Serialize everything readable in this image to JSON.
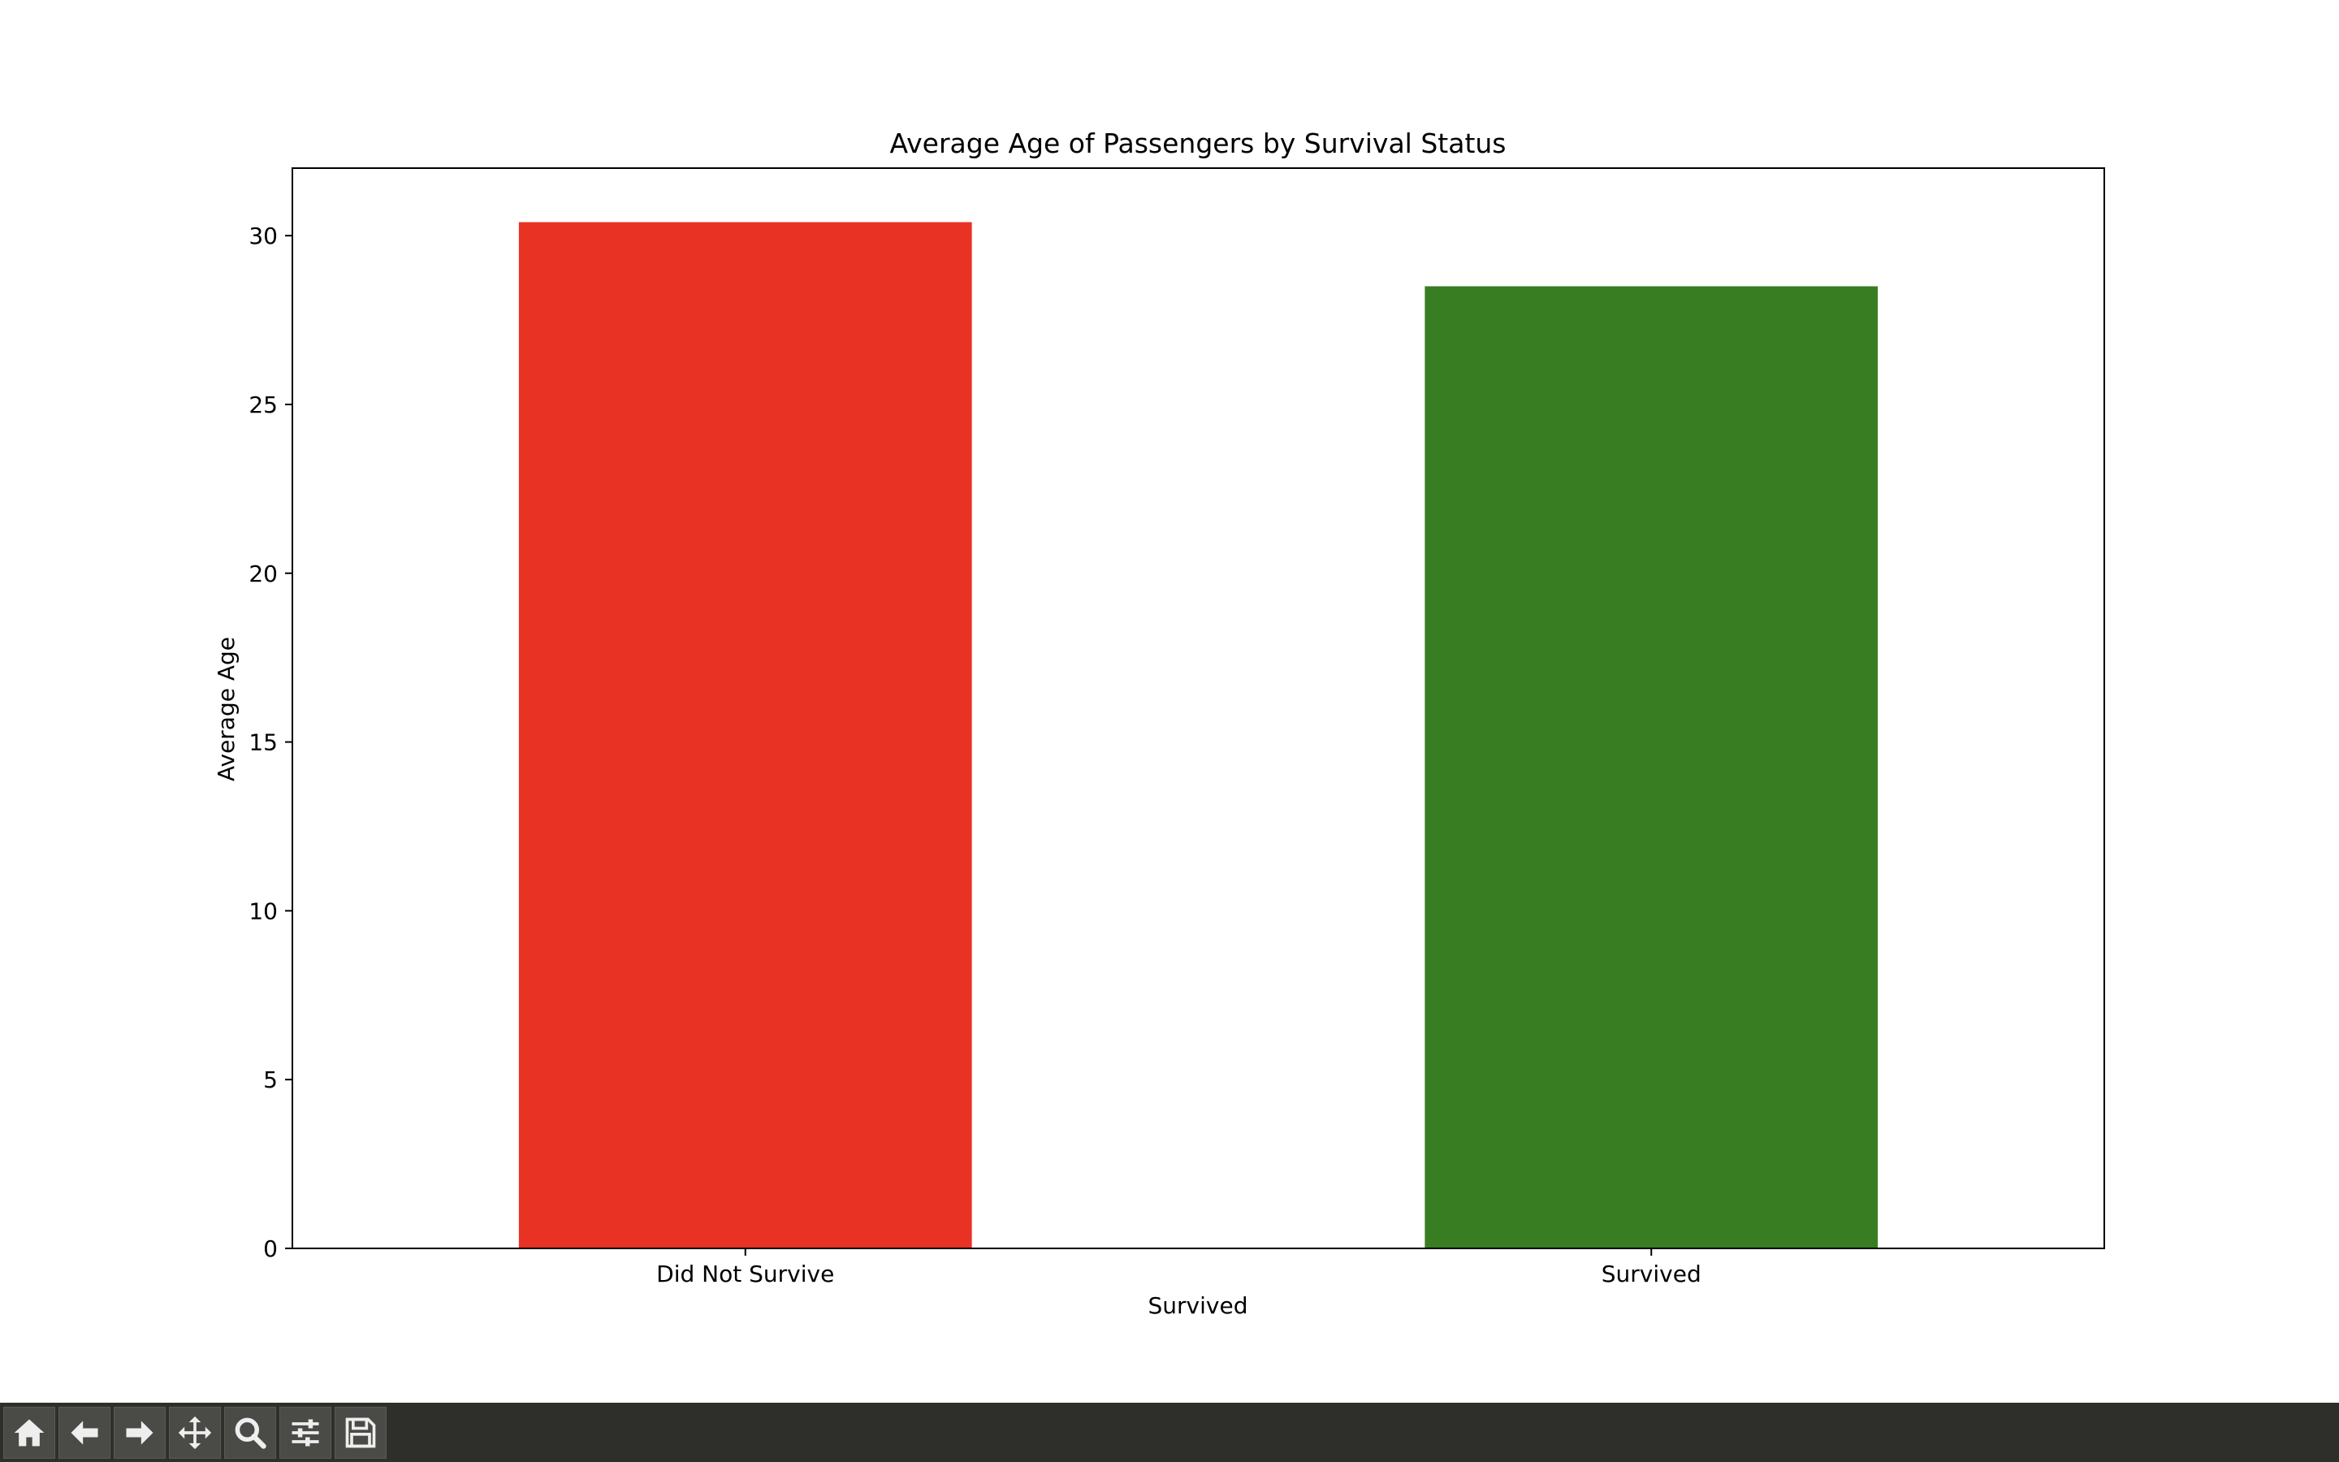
{
  "chart_data": {
    "type": "bar",
    "title": "Average Age of Passengers by Survival Status",
    "xlabel": "Survived",
    "ylabel": "Average Age",
    "categories": [
      "Did Not Survive",
      "Survived"
    ],
    "values": [
      30.4,
      28.5
    ],
    "colors": [
      "#e83224",
      "#387d22"
    ],
    "ylim": [
      0,
      32
    ],
    "yticks": [
      0,
      5,
      10,
      15,
      20,
      25,
      30
    ],
    "grid": false
  },
  "toolbar": {
    "buttons": [
      {
        "name": "home-icon",
        "icon": "home"
      },
      {
        "name": "back-icon",
        "icon": "back"
      },
      {
        "name": "forward-icon",
        "icon": "forward"
      },
      {
        "name": "pan-icon",
        "icon": "pan"
      },
      {
        "name": "zoom-icon",
        "icon": "zoom"
      },
      {
        "name": "configure-subplots-icon",
        "icon": "sliders"
      },
      {
        "name": "save-icon",
        "icon": "save"
      }
    ]
  }
}
